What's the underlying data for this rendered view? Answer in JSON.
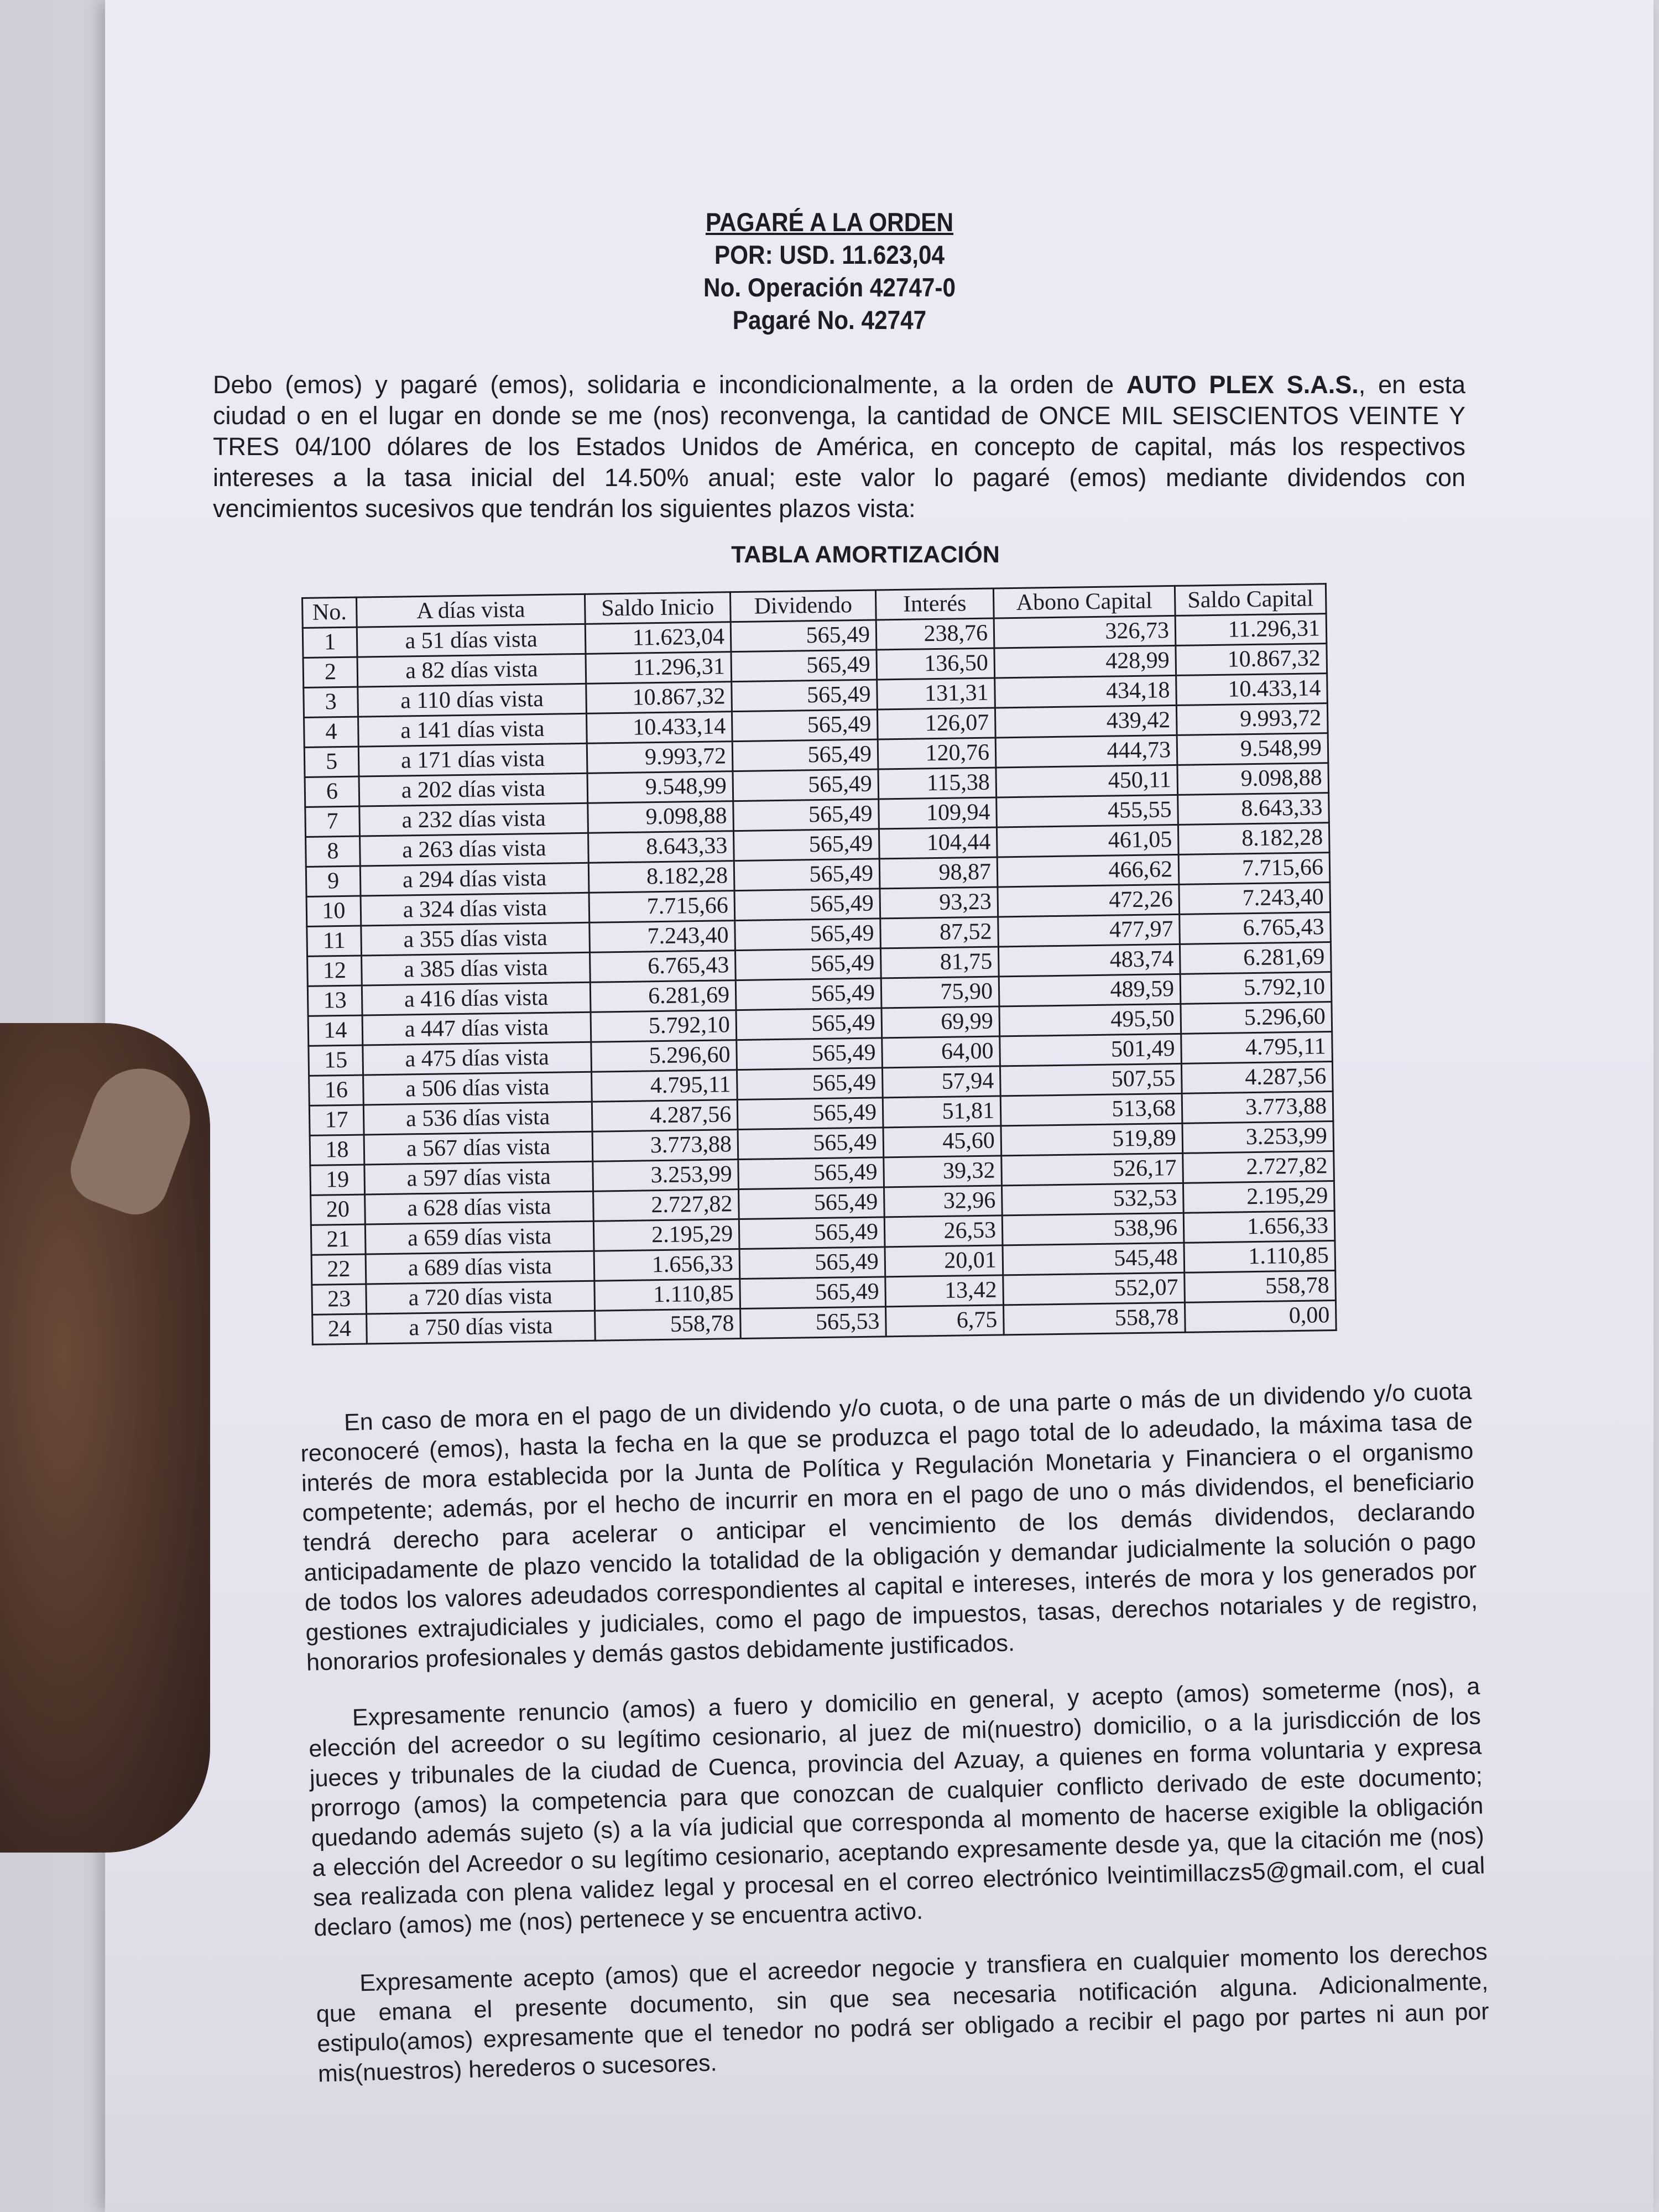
{
  "header": {
    "title": "PAGARÉ A LA ORDEN",
    "amount": "POR: USD.  11.623,04",
    "operation": "No. Operación 42747-0",
    "note_number": "Pagaré No. 42747"
  },
  "intro": {
    "lines": [
      [
        "Debo (emos) y pagaré (emos), solidaria e incondicionalmente, a la orden de ",
        "AUTO PLEX S.A.S.",
        ", en esta"
      ],
      [
        "ciudad o en el lugar en donde se me (nos) reconvenga, la cantidad de ONCE MIL SEISCIENTOS VEINTE Y"
      ],
      [
        "TRES 04/100 dólares de los Estados Unidos de América, en concepto de capital, más los respectivos"
      ],
      [
        "intereses a la tasa inicial del 14.50% anual; este valor lo pagaré (emos) mediante dividendos con"
      ],
      [
        "vencimientos sucesivos que tendrán los siguientes plazos vista:"
      ]
    ]
  },
  "table": {
    "title": "TABLA AMORTIZACIÓN",
    "columns": [
      "No.",
      "A días vista",
      "Saldo Inicio",
      "Dividendo",
      "Interés",
      "Abono Capital",
      "Saldo Capital"
    ],
    "rows": [
      [
        "1",
        "a 51 días vista",
        "11.623,04",
        "565,49",
        "238,76",
        "326,73",
        "11.296,31"
      ],
      [
        "2",
        "a 82 días vista",
        "11.296,31",
        "565,49",
        "136,50",
        "428,99",
        "10.867,32"
      ],
      [
        "3",
        "a 110 días vista",
        "10.867,32",
        "565,49",
        "131,31",
        "434,18",
        "10.433,14"
      ],
      [
        "4",
        "a 141 días vista",
        "10.433,14",
        "565,49",
        "126,07",
        "439,42",
        "9.993,72"
      ],
      [
        "5",
        "a 171 días vista",
        "9.993,72",
        "565,49",
        "120,76",
        "444,73",
        "9.548,99"
      ],
      [
        "6",
        "a 202 días vista",
        "9.548,99",
        "565,49",
        "115,38",
        "450,11",
        "9.098,88"
      ],
      [
        "7",
        "a 232 días vista",
        "9.098,88",
        "565,49",
        "109,94",
        "455,55",
        "8.643,33"
      ],
      [
        "8",
        "a 263 días vista",
        "8.643,33",
        "565,49",
        "104,44",
        "461,05",
        "8.182,28"
      ],
      [
        "9",
        "a 294 días vista",
        "8.182,28",
        "565,49",
        "98,87",
        "466,62",
        "7.715,66"
      ],
      [
        "10",
        "a 324 días vista",
        "7.715,66",
        "565,49",
        "93,23",
        "472,26",
        "7.243,40"
      ],
      [
        "11",
        "a 355 días vista",
        "7.243,40",
        "565,49",
        "87,52",
        "477,97",
        "6.765,43"
      ],
      [
        "12",
        "a 385 días vista",
        "6.765,43",
        "565,49",
        "81,75",
        "483,74",
        "6.281,69"
      ],
      [
        "13",
        "a 416 días vista",
        "6.281,69",
        "565,49",
        "75,90",
        "489,59",
        "5.792,10"
      ],
      [
        "14",
        "a 447 días vista",
        "5.792,10",
        "565,49",
        "69,99",
        "495,50",
        "5.296,60"
      ],
      [
        "15",
        "a 475 días vista",
        "5.296,60",
        "565,49",
        "64,00",
        "501,49",
        "4.795,11"
      ],
      [
        "16",
        "a 506 días vista",
        "4.795,11",
        "565,49",
        "57,94",
        "507,55",
        "4.287,56"
      ],
      [
        "17",
        "a 536 días vista",
        "4.287,56",
        "565,49",
        "51,81",
        "513,68",
        "3.773,88"
      ],
      [
        "18",
        "a 567 días vista",
        "3.773,88",
        "565,49",
        "45,60",
        "519,89",
        "3.253,99"
      ],
      [
        "19",
        "a 597 días vista",
        "3.253,99",
        "565,49",
        "39,32",
        "526,17",
        "2.727,82"
      ],
      [
        "20",
        "a 628 días vista",
        "2.727,82",
        "565,49",
        "32,96",
        "532,53",
        "2.195,29"
      ],
      [
        "21",
        "a 659 días vista",
        "2.195,29",
        "565,49",
        "26,53",
        "538,96",
        "1.656,33"
      ],
      [
        "22",
        "a 689 días vista",
        "1.656,33",
        "565,49",
        "20,01",
        "545,48",
        "1.110,85"
      ],
      [
        "23",
        "a 720 días vista",
        "1.110,85",
        "565,49",
        "13,42",
        "552,07",
        "558,78"
      ],
      [
        "24",
        "a 750 días vista",
        "558,78",
        "565,53",
        "6,75",
        "558,78",
        "0,00"
      ]
    ]
  },
  "paragraphs": [
    [
      "En caso de mora en el pago de un dividendo y/o cuota, o de una parte o más de un dividendo y/o cuota",
      "reconoceré (emos), hasta la fecha en la que se produzca el pago total de lo adeudado, la máxima tasa de",
      "interés de mora establecida por la Junta de Política y Regulación Monetaria y Financiera o el organismo",
      "competente; además, por el hecho de incurrir en mora en el pago de uno o más dividendos, el beneficiario",
      "tendrá derecho para acelerar o anticipar el vencimiento de los demás dividendos, declarando",
      "anticipadamente de plazo vencido la totalidad de la obligación y demandar judicialmente la solución o pago",
      "de todos los valores adeudados correspondientes al capital e intereses, interés de mora y los generados por",
      "gestiones extrajudiciales y judiciales, como el pago de impuestos, tasas, derechos notariales y de registro,",
      "honorarios profesionales y demás gastos debidamente justificados."
    ],
    [
      "Expresamente renuncio (amos) a fuero y domicilio en general, y acepto (amos) someterme (nos), a",
      "elección del acreedor o su legítimo cesionario, al juez de mi(nuestro) domicilio, o a la jurisdicción de los",
      "jueces y tribunales de la ciudad de Cuenca, provincia del Azuay, a quienes en forma voluntaria y expresa",
      "prorrogo (amos) la competencia para que conozcan de cualquier conflicto derivado de este documento;",
      "quedando además sujeto (s) a la vía judicial que corresponda al momento de hacerse exigible la obligación",
      "a elección del Acreedor o su legítimo cesionario, aceptando expresamente desde ya, que la citación me (nos)",
      "sea realizada con plena validez legal y procesal en el correo electrónico lveintimillaczs5@gmail.com, el cual",
      "declaro (amos) me (nos) pertenece y se encuentra activo."
    ],
    [
      "Expresamente acepto (amos) que el acreedor negocie y transfiera en cualquier momento los derechos",
      "que emana el presente documento, sin que sea necesaria notificación alguna. Adicionalmente,",
      "estipulo(amos) expresamente que el tenedor no podrá ser obligado a recibir el pago por partes ni aun por",
      "mis(nuestros) herederos o sucesores."
    ]
  ]
}
